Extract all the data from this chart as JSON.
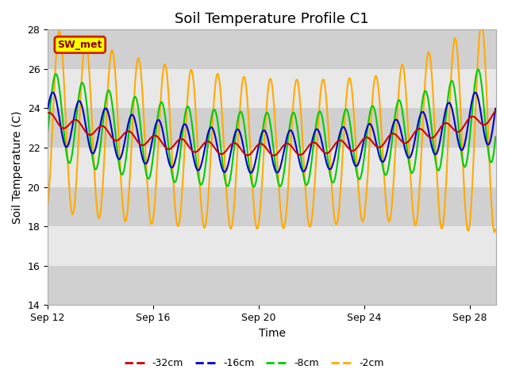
{
  "title": "Soil Temperature Profile C1",
  "xlabel": "Time",
  "ylabel": "Soil Temperature (C)",
  "ylim": [
    14,
    28
  ],
  "xlim_hours": [
    0,
    408
  ],
  "x_ticks_hours": [
    0,
    96,
    192,
    288,
    384
  ],
  "x_tick_labels": [
    "Sep 12",
    "Sep 16",
    "Sep 20",
    "Sep 24",
    "Sep 28"
  ],
  "y_ticks": [
    14,
    16,
    18,
    20,
    22,
    24,
    26,
    28
  ],
  "band_pairs": [
    [
      14,
      16
    ],
    [
      18,
      20
    ],
    [
      22,
      24
    ],
    [
      26,
      28
    ]
  ],
  "band_color_dark": "#d8d8d8",
  "band_color_light": "#e8e8e8",
  "plot_bg_color": "#e8e8e8",
  "fig_bg_color": "#ffffff",
  "line_colors": {
    "-32cm": "#cc0000",
    "-16cm": "#0000cc",
    "-8cm": "#00cc00",
    "-2cm": "#ffaa00"
  },
  "sw_met_label": "SW_met",
  "sw_met_fg": "#8b0000",
  "sw_met_bg": "#ffff00",
  "sw_met_border": "#cc2200",
  "title_fontsize": 13,
  "axis_label_fontsize": 10,
  "tick_fontsize": 9,
  "legend_fontsize": 9
}
